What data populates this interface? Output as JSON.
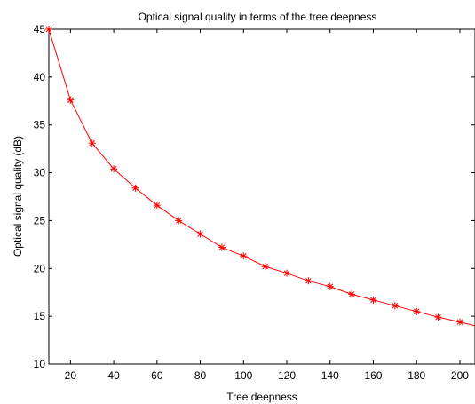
{
  "chart_data": {
    "type": "line",
    "title": "Optical signal quality in terms of the tree deepness",
    "xlabel": "Tree deepness",
    "ylabel": "Optical signal quality (dB)",
    "xlim": [
      10,
      207
    ],
    "ylim": [
      10,
      45
    ],
    "xticks": [
      20,
      40,
      60,
      80,
      100,
      120,
      140,
      160,
      180,
      200
    ],
    "yticks": [
      10,
      15,
      20,
      25,
      30,
      35,
      40,
      45
    ],
    "grid": false,
    "line_color": "#ff0000",
    "marker": "asterisk",
    "series": [
      {
        "markers": {
          "x": [
            10,
            20,
            30,
            40,
            50,
            60,
            70,
            80,
            90,
            100,
            110,
            120,
            130,
            140,
            150,
            160,
            170,
            180,
            190,
            200
          ],
          "y": [
            45.0,
            37.6,
            33.1,
            30.4,
            28.4,
            26.6,
            25.0,
            23.6,
            22.2,
            21.3,
            20.2,
            19.5,
            18.7,
            18.1,
            17.3,
            16.7,
            16.1,
            15.5,
            14.9,
            14.4
          ]
        },
        "curve_end": {
          "x": 207,
          "y": 14.0
        }
      }
    ]
  }
}
